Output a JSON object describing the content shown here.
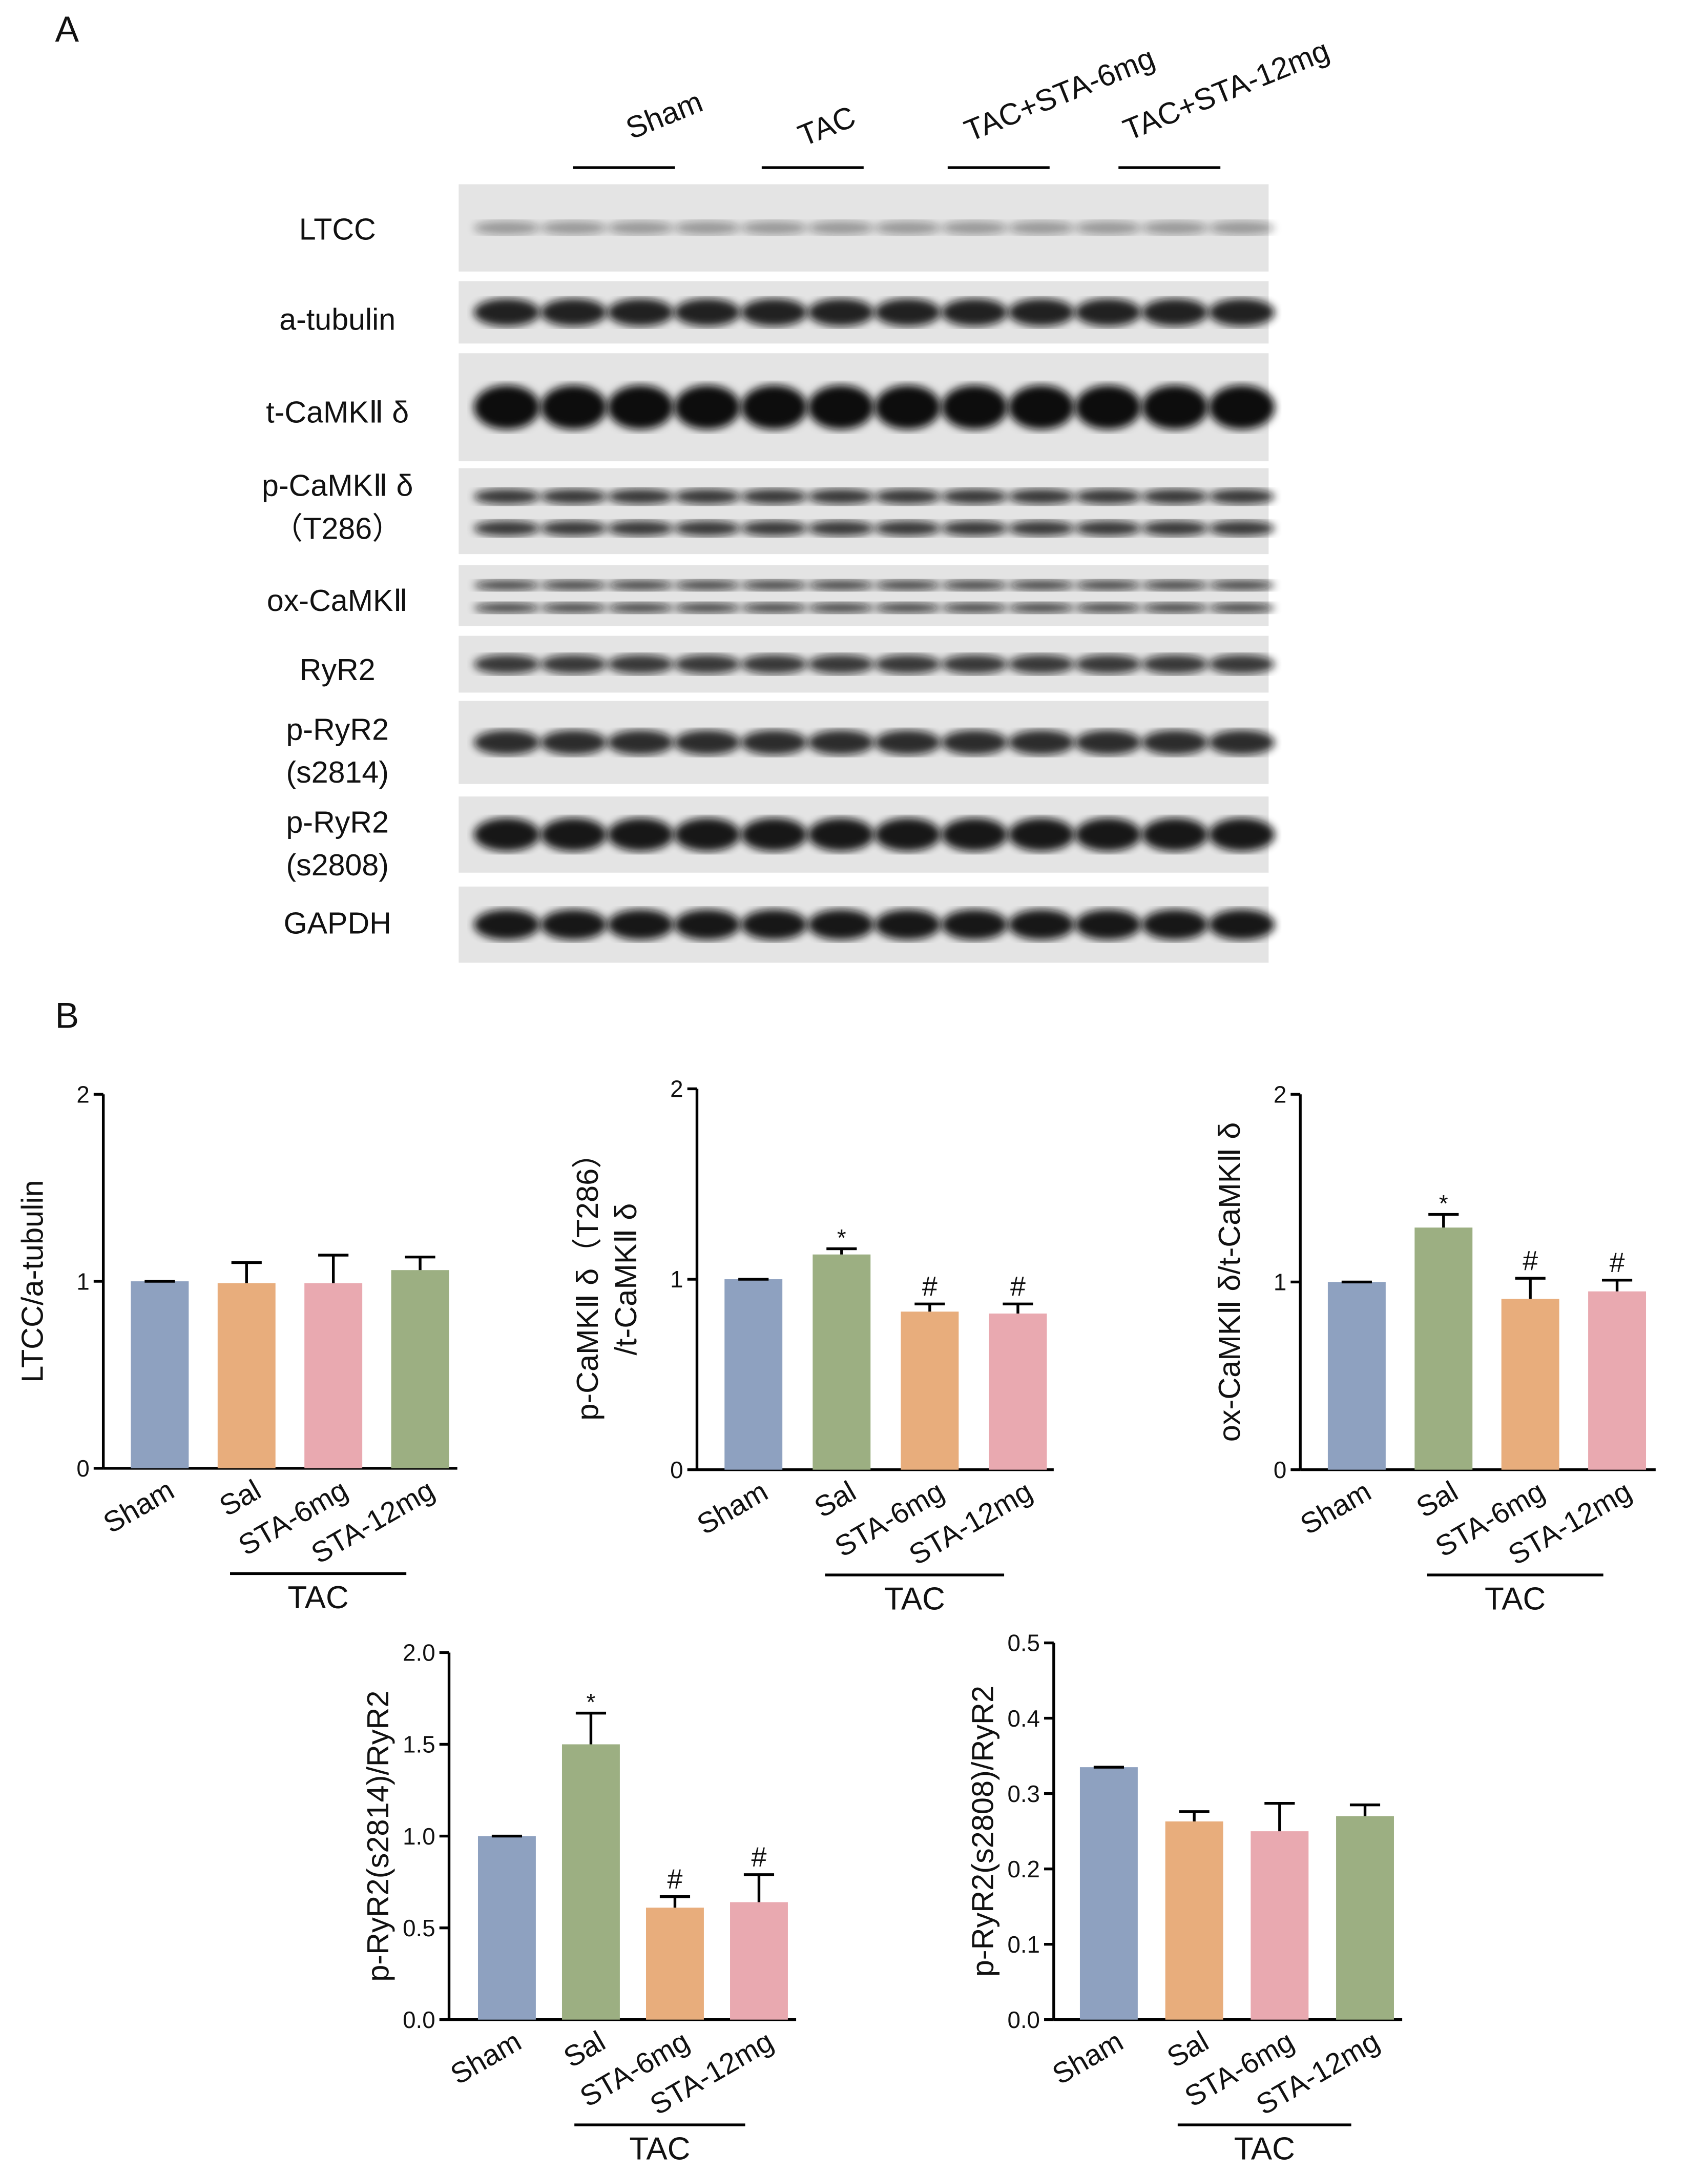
{
  "panels": {
    "a": "A",
    "b": "B"
  },
  "blot": {
    "groups": [
      "Sham",
      "TAC",
      "TAC+STA-6mg",
      "TAC+STA-12mg"
    ],
    "rows": [
      [
        "LTCC"
      ],
      [
        "a-tubulin"
      ],
      [
        "t-CaMKⅡ δ"
      ],
      [
        "p-CaMKⅡ δ",
        "（T286）"
      ],
      [
        "ox-CaMKⅡ"
      ],
      [
        "RyR2"
      ],
      [
        "p-RyR2",
        "(s2814)"
      ],
      [
        "p-RyR2",
        "(s2808)"
      ],
      [
        "GAPDH"
      ]
    ]
  },
  "chart_data": [
    {
      "type": "bar",
      "y_label": [
        "LTCC/a-tubulin"
      ],
      "categories": [
        "Sham",
        "Sal",
        "STA-6mg",
        "STA-12mg"
      ],
      "values": [
        1.0,
        0.99,
        0.99,
        1.06
      ],
      "errors": [
        0,
        0.11,
        0.15,
        0.07
      ],
      "annotations": [
        null,
        null,
        null,
        null
      ],
      "colors": [
        "#8ea1c0",
        "#e8ad7c",
        "#e9a9b0",
        "#9caf82"
      ],
      "group_label": "TAC",
      "ylim": [
        0,
        2
      ],
      "yticks": [
        0,
        1,
        2
      ]
    },
    {
      "type": "bar",
      "y_label": [
        "p-CaMKⅡ δ（T286）",
        "/t-CaMKⅡ δ"
      ],
      "categories": [
        "Sham",
        "Sal",
        "STA-6mg",
        "STA-12mg"
      ],
      "values": [
        1.0,
        1.13,
        0.83,
        0.82
      ],
      "errors": [
        0,
        0.03,
        0.04,
        0.05
      ],
      "annotations": [
        null,
        "*",
        "#",
        "#"
      ],
      "colors": [
        "#8ea1c0",
        "#9caf82",
        "#e8ad7c",
        "#e9a9b0"
      ],
      "group_label": "TAC",
      "ylim": [
        0,
        2
      ],
      "yticks": [
        0,
        1,
        2
      ]
    },
    {
      "type": "bar",
      "y_label": [
        "ox-CaMKⅡ δ/t-CaMKⅡ δ"
      ],
      "categories": [
        "Sham",
        "Sal",
        "STA-6mg",
        "STA-12mg"
      ],
      "values": [
        1.0,
        1.29,
        0.91,
        0.95
      ],
      "errors": [
        0,
        0.07,
        0.11,
        0.06
      ],
      "annotations": [
        null,
        "*",
        "#",
        "#"
      ],
      "colors": [
        "#8ea1c0",
        "#9caf82",
        "#e8ad7c",
        "#e9a9b0"
      ],
      "group_label": "TAC",
      "ylim": [
        0,
        2
      ],
      "yticks": [
        0,
        1,
        2
      ]
    },
    {
      "type": "bar",
      "y_label": [
        "p-RyR2(s2814)/RyR2"
      ],
      "categories": [
        "Sham",
        "Sal",
        "STA-6mg",
        "STA-12mg"
      ],
      "values": [
        1.0,
        1.5,
        0.61,
        0.64
      ],
      "errors": [
        0,
        0.17,
        0.06,
        0.15
      ],
      "annotations": [
        null,
        "*",
        "#",
        "#"
      ],
      "colors": [
        "#8ea1c0",
        "#9caf82",
        "#e8ad7c",
        "#e9a9b0"
      ],
      "group_label": "TAC",
      "ylim": [
        0,
        2
      ],
      "yticks": [
        {
          "value": 0,
          "label": "0.0"
        },
        0.5,
        {
          "value": 1,
          "label": "1.0"
        },
        1.5,
        {
          "value": 2,
          "label": "2.0"
        }
      ]
    },
    {
      "type": "bar",
      "y_label": [
        "p-RyR2(s2808)/RyR2"
      ],
      "categories": [
        "Sham",
        "Sal",
        "STA-6mg",
        "STA-12mg"
      ],
      "values": [
        0.335,
        0.263,
        0.25,
        0.27
      ],
      "errors": [
        0,
        0.013,
        0.037,
        0.015
      ],
      "annotations": [
        null,
        null,
        null,
        null
      ],
      "colors": [
        "#8ea1c0",
        "#e8ad7c",
        "#e9a9b0",
        "#9caf82"
      ],
      "group_label": "TAC",
      "ylim": [
        0,
        0.5
      ],
      "yticks": [
        {
          "value": 0,
          "label": "0.0"
        },
        0.1,
        0.2,
        0.3,
        0.4,
        0.5
      ]
    }
  ]
}
